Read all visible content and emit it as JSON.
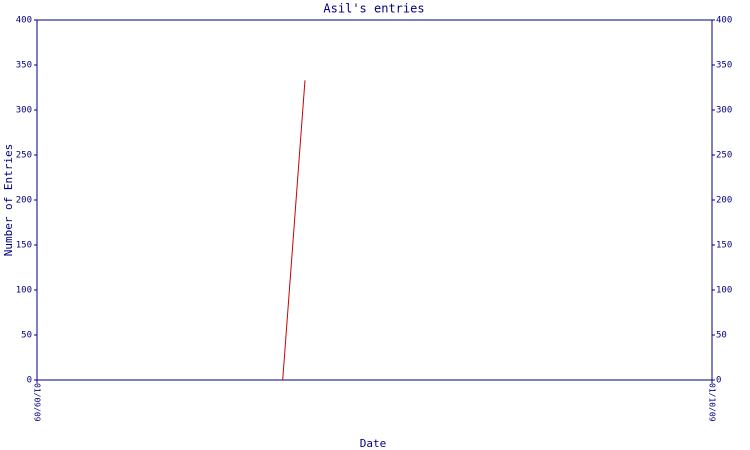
{
  "chart_data": {
    "type": "line",
    "title": "Asil's entries",
    "x_label": "Date",
    "y_label": "Number of Entries",
    "x": [
      0.364,
      0.397
    ],
    "series": [
      {
        "name": "Entries",
        "color": "#cc0000",
        "values": [
          0,
          333
        ]
      }
    ],
    "xlim": [
      0,
      1
    ],
    "xticks": [
      {
        "value": 0,
        "label": "01/09/09"
      },
      {
        "value": 1,
        "label": "01/10/09"
      }
    ],
    "ylim": [
      0,
      400
    ],
    "yticks": [
      0,
      50,
      100,
      150,
      200,
      250,
      300,
      350,
      400
    ],
    "right_axis": true,
    "grid": false
  }
}
